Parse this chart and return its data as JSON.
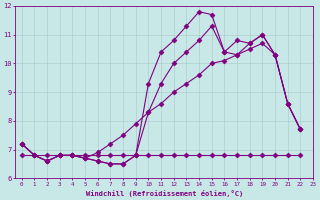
{
  "xlabel": "Windchill (Refroidissement éolien,°C)",
  "background_color": "#c8e8e8",
  "grid_color": "#a8c8c8",
  "line_color": "#800080",
  "x_values": [
    0,
    1,
    2,
    3,
    4,
    5,
    6,
    7,
    8,
    9,
    10,
    11,
    12,
    13,
    14,
    15,
    16,
    17,
    18,
    19,
    20,
    21,
    22,
    23
  ],
  "series_jagged": [
    7.2,
    6.8,
    6.6,
    6.8,
    6.8,
    6.7,
    6.6,
    6.5,
    6.5,
    6.8,
    9.3,
    10.4,
    10.8,
    11.3,
    11.8,
    11.7,
    10.4,
    10.8,
    10.7,
    11.0,
    10.3,
    8.6,
    7.7,
    null
  ],
  "series_smooth": [
    7.2,
    6.8,
    6.6,
    6.8,
    6.8,
    6.7,
    6.6,
    6.5,
    6.5,
    6.8,
    8.3,
    9.3,
    10.0,
    10.4,
    10.8,
    11.3,
    10.4,
    10.3,
    10.7,
    11.0,
    10.3,
    8.6,
    7.7,
    null
  ],
  "series_flat": [
    6.8,
    6.8,
    6.8,
    6.8,
    6.8,
    6.8,
    6.8,
    6.8,
    6.8,
    6.8,
    6.8,
    6.8,
    6.8,
    6.8,
    6.8,
    6.8,
    6.8,
    6.8,
    6.8,
    6.8,
    6.8,
    6.8,
    6.8
  ],
  "series_trend": [
    7.2,
    6.8,
    6.6,
    6.8,
    6.8,
    6.7,
    6.9,
    7.2,
    7.5,
    7.9,
    8.3,
    8.6,
    9.0,
    9.3,
    9.6,
    10.0,
    10.1,
    10.3,
    10.5,
    10.7,
    10.3,
    8.6,
    7.7,
    null
  ],
  "ylim": [
    6,
    12
  ],
  "xlim": [
    -0.5,
    23
  ],
  "yticks": [
    6,
    7,
    8,
    9,
    10,
    11,
    12
  ],
  "xticks": [
    0,
    1,
    2,
    3,
    4,
    5,
    6,
    7,
    8,
    9,
    10,
    11,
    12,
    13,
    14,
    15,
    16,
    17,
    18,
    19,
    20,
    21,
    22,
    23
  ],
  "marker": "D",
  "markersize": 2.5,
  "linewidth": 0.8
}
